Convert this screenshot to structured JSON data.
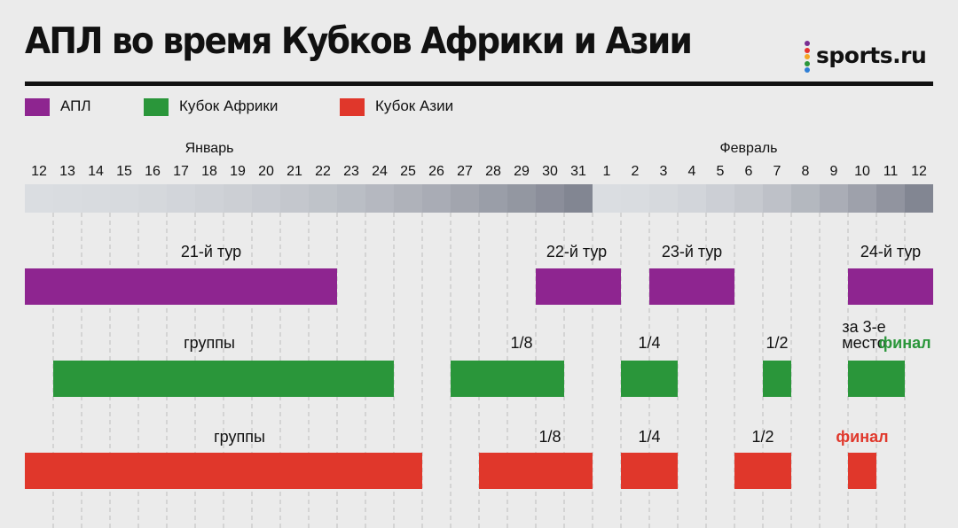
{
  "header": {
    "title": "АПЛ во время Кубков Африки и Азии",
    "brand": "sports.ru",
    "brand_dot_colors": [
      "#7a2d92",
      "#e8342e",
      "#f5a623",
      "#2a963a",
      "#2f7fd6"
    ]
  },
  "chart_data": {
    "type": "gantt",
    "x_unit": "date",
    "months": [
      {
        "name": "Январь",
        "at": "01-18"
      },
      {
        "name": "Февраль",
        "at": "02-06"
      }
    ],
    "days": [
      "01-12",
      "01-13",
      "01-14",
      "01-15",
      "01-16",
      "01-17",
      "01-18",
      "01-19",
      "01-20",
      "01-21",
      "01-22",
      "01-23",
      "01-24",
      "01-25",
      "01-26",
      "01-27",
      "01-28",
      "01-29",
      "01-30",
      "01-31",
      "02-01",
      "02-02",
      "02-03",
      "02-04",
      "02-05",
      "02-06",
      "02-07",
      "02-08",
      "02-09",
      "02-10",
      "02-11",
      "02-12"
    ],
    "day_labels": [
      "12",
      "13",
      "14",
      "15",
      "16",
      "17",
      "18",
      "19",
      "20",
      "21",
      "22",
      "23",
      "24",
      "25",
      "26",
      "27",
      "28",
      "29",
      "30",
      "31",
      "1",
      "2",
      "3",
      "4",
      "5",
      "6",
      "7",
      "8",
      "9",
      "10",
      "11",
      "12"
    ],
    "series": [
      {
        "name": "АПЛ",
        "color": "#8e2590",
        "bars": [
          {
            "start": "01-12",
            "end": "01-22",
            "label": "21-й тур"
          },
          {
            "start": "01-30",
            "end": "02-01",
            "label": "22-й тур"
          },
          {
            "start": "02-03",
            "end": "02-05",
            "label": "23-й тур"
          },
          {
            "start": "02-10",
            "end": "02-12",
            "label": "24-й тур"
          }
        ]
      },
      {
        "name": "Кубок Африки",
        "color": "#2a963a",
        "bars": [
          {
            "start": "01-13",
            "end": "01-24",
            "label": "группы"
          },
          {
            "start": "01-27",
            "end": "01-30",
            "label": "1/8"
          },
          {
            "start": "02-02",
            "end": "02-03",
            "label": "1/4"
          },
          {
            "start": "02-07",
            "end": "02-07",
            "label": "1/2"
          },
          {
            "start": "02-10",
            "end": "02-10",
            "label": "за 3-е место"
          },
          {
            "start": "02-11",
            "end": "02-11",
            "label": "финал",
            "accent": true
          }
        ]
      },
      {
        "name": "Кубок Азии",
        "color": "#e0372b",
        "bars": [
          {
            "start": "01-12",
            "end": "01-25",
            "label": "группы"
          },
          {
            "start": "01-28",
            "end": "01-31",
            "label": "1/8"
          },
          {
            "start": "02-02",
            "end": "02-03",
            "label": "1/4"
          },
          {
            "start": "02-06",
            "end": "02-07",
            "label": "1/2"
          },
          {
            "start": "02-10",
            "end": "02-10",
            "label": "финал",
            "accent": true
          }
        ]
      }
    ],
    "legend": {
      "placement": "top-left",
      "items": [
        "АПЛ",
        "Кубок Африки",
        "Кубок Азии"
      ]
    },
    "grid": true
  }
}
